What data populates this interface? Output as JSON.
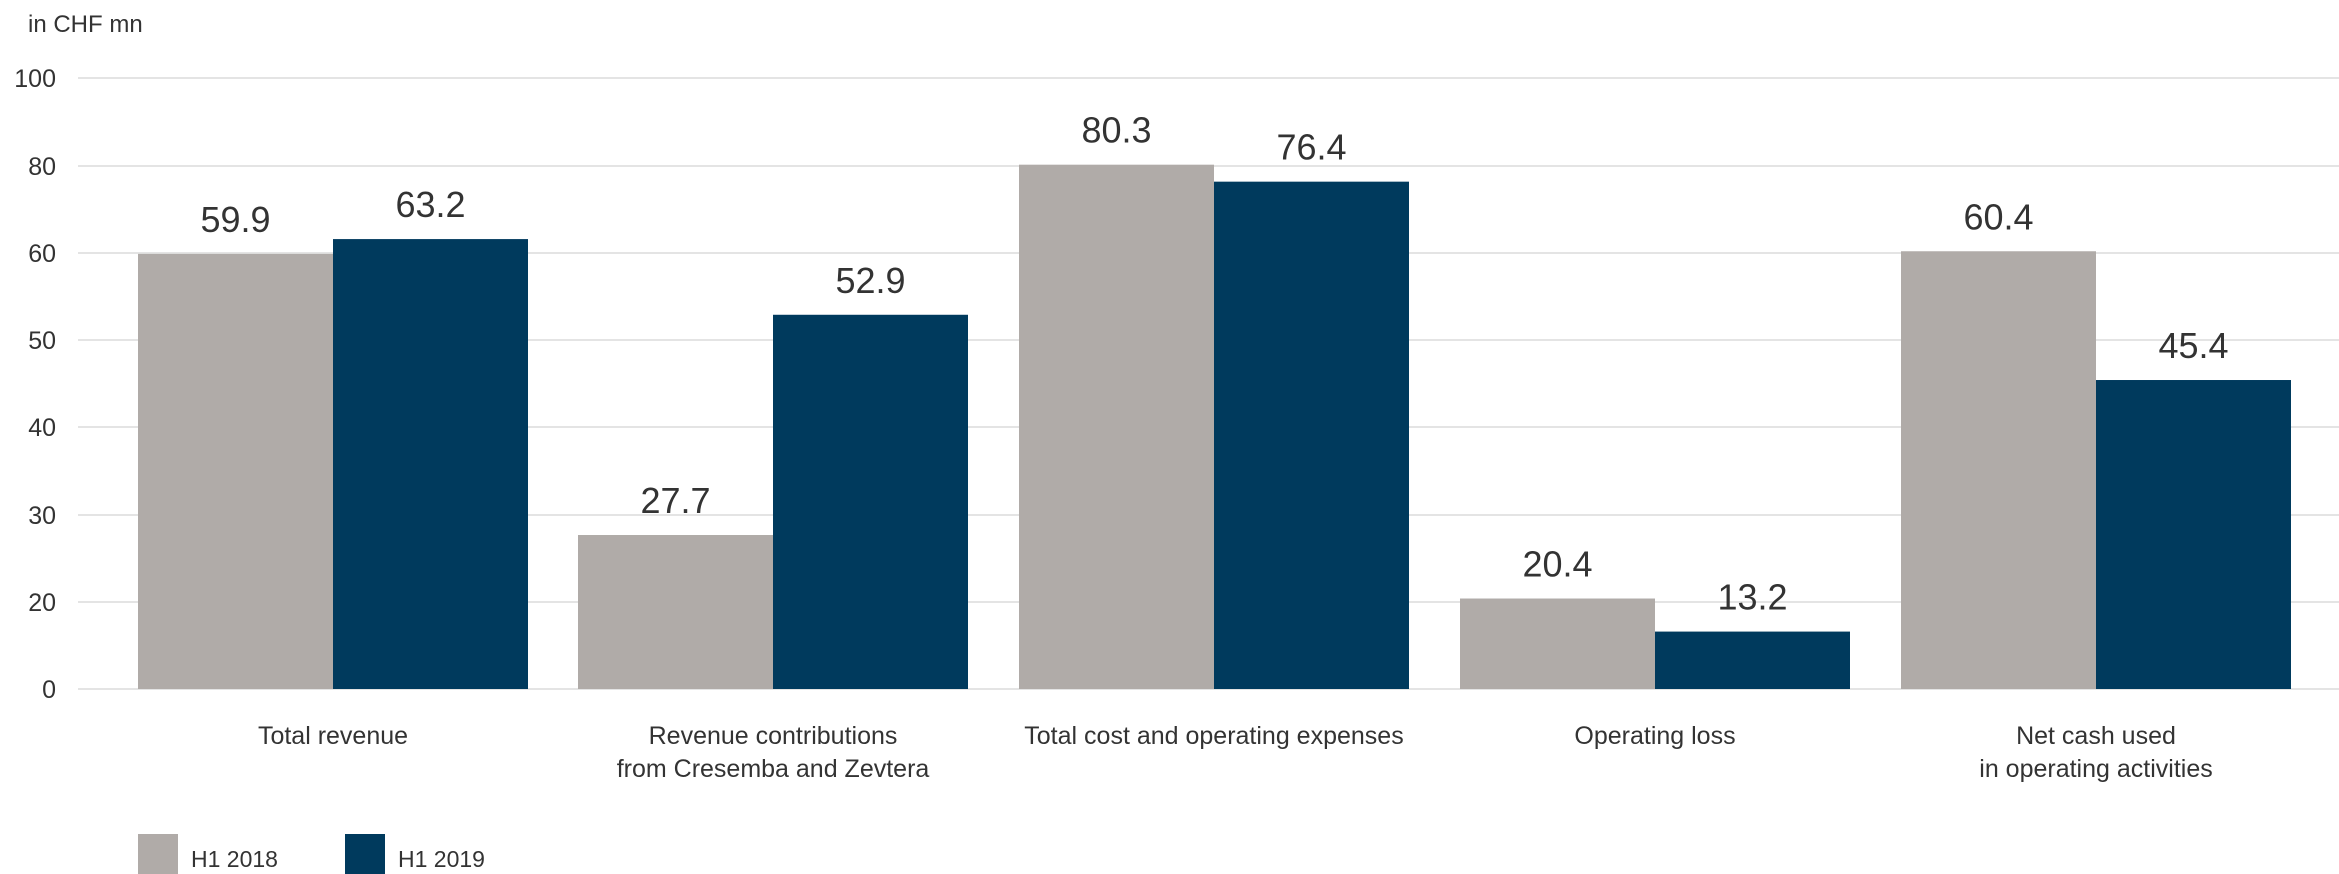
{
  "chart_data": {
    "type": "bar",
    "unit_label": "in CHF mn",
    "categories": [
      [
        "Total revenue"
      ],
      [
        "Revenue contributions",
        "from Cresemba and Zevtera"
      ],
      [
        "Total cost and operating expenses"
      ],
      [
        "Operating loss"
      ],
      [
        "Net cash used",
        "in operating activities"
      ]
    ],
    "y_ticks": [
      "0",
      "20",
      "30",
      "40",
      "50",
      "60",
      "80",
      "100"
    ],
    "series": [
      {
        "name": "H1 2018",
        "color": "#b0aba8",
        "values": [
          59.9,
          27.7,
          80.3,
          20.4,
          60.4
        ]
      },
      {
        "name": "H1 2019",
        "color": "#003a5d",
        "values": [
          63.2,
          52.9,
          76.4,
          13.2,
          45.4
        ]
      }
    ],
    "legend_position": "bottom-left",
    "grid": true
  }
}
